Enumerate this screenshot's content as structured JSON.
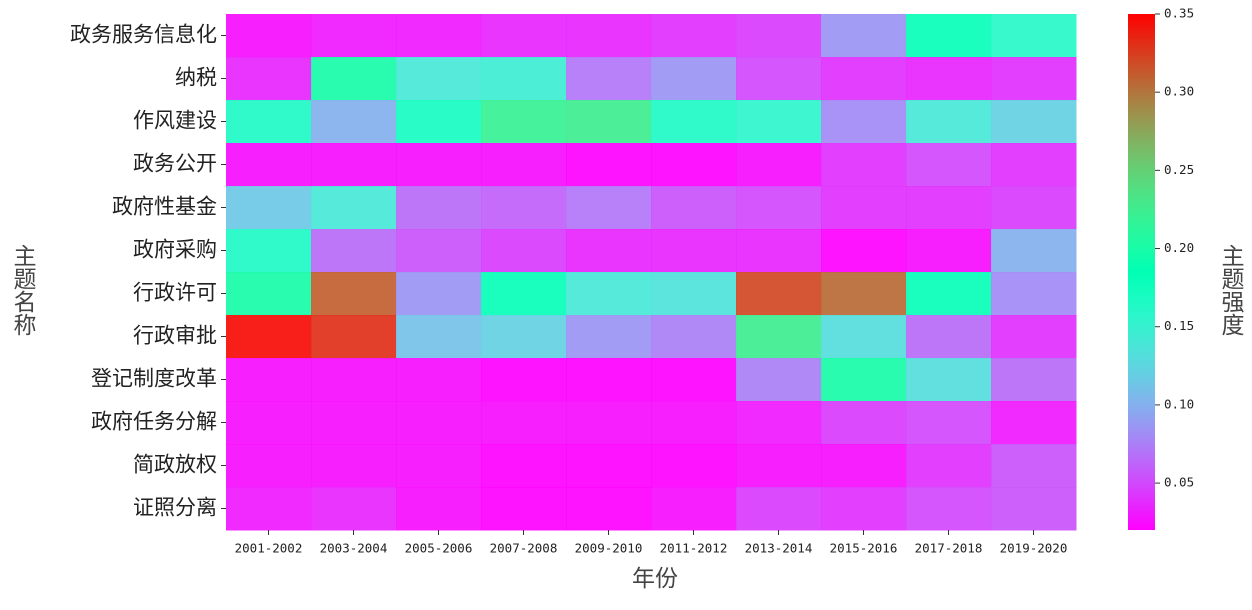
{
  "chart_data": {
    "type": "heatmap",
    "x_categories": [
      "2001-2002",
      "2003-2004",
      "2005-2006",
      "2007-2008",
      "2009-2010",
      "2011-2012",
      "2013-2014",
      "2015-2016",
      "2017-2018",
      "2019-2020"
    ],
    "y_categories": [
      "政务服务信息化",
      "纳税",
      "作风建设",
      "政务公开",
      "政府性基金",
      "政府采购",
      "行政许可",
      "行政审批",
      "登记制度改革",
      "政府任务分解",
      "简政放权",
      "证照分离"
    ],
    "z": [
      [
        0.025,
        0.03,
        0.03,
        0.035,
        0.035,
        0.04,
        0.045,
        0.085,
        0.18,
        0.16
      ],
      [
        0.035,
        0.2,
        0.14,
        0.145,
        0.07,
        0.085,
        0.05,
        0.04,
        0.035,
        0.04
      ],
      [
        0.165,
        0.1,
        0.17,
        0.22,
        0.225,
        0.165,
        0.155,
        0.08,
        0.14,
        0.12
      ],
      [
        0.025,
        0.025,
        0.025,
        0.025,
        0.02,
        0.02,
        0.025,
        0.04,
        0.05,
        0.04
      ],
      [
        0.115,
        0.14,
        0.065,
        0.06,
        0.07,
        0.055,
        0.05,
        0.04,
        0.04,
        0.045
      ],
      [
        0.165,
        0.065,
        0.055,
        0.045,
        0.035,
        0.035,
        0.035,
        0.02,
        0.025,
        0.1
      ],
      [
        0.2,
        0.31,
        0.085,
        0.18,
        0.14,
        0.135,
        0.32,
        0.305,
        0.18,
        0.08
      ],
      [
        0.345,
        0.33,
        0.11,
        0.12,
        0.085,
        0.075,
        0.225,
        0.13,
        0.065,
        0.04
      ],
      [
        0.025,
        0.025,
        0.025,
        0.02,
        0.02,
        0.02,
        0.075,
        0.2,
        0.13,
        0.065
      ],
      [
        0.025,
        0.025,
        0.025,
        0.025,
        0.025,
        0.025,
        0.03,
        0.045,
        0.05,
        0.03
      ],
      [
        0.025,
        0.025,
        0.025,
        0.02,
        0.02,
        0.02,
        0.025,
        0.025,
        0.04,
        0.055
      ],
      [
        0.03,
        0.035,
        0.025,
        0.02,
        0.02,
        0.025,
        0.045,
        0.04,
        0.05,
        0.055
      ]
    ],
    "colormap": "rainbow",
    "clim": [
      0.02,
      0.35
    ],
    "cticks": [
      0.05,
      {
        "value": 0.1,
        "label": "0.10"
      },
      0.15,
      {
        "value": 0.2,
        "label": "0.20"
      },
      0.25,
      {
        "value": 0.3,
        "label": "0.30"
      },
      0.35
    ],
    "xlabel": "年份",
    "ylabel": "主题名称",
    "colorbar_label": "主题强度"
  }
}
